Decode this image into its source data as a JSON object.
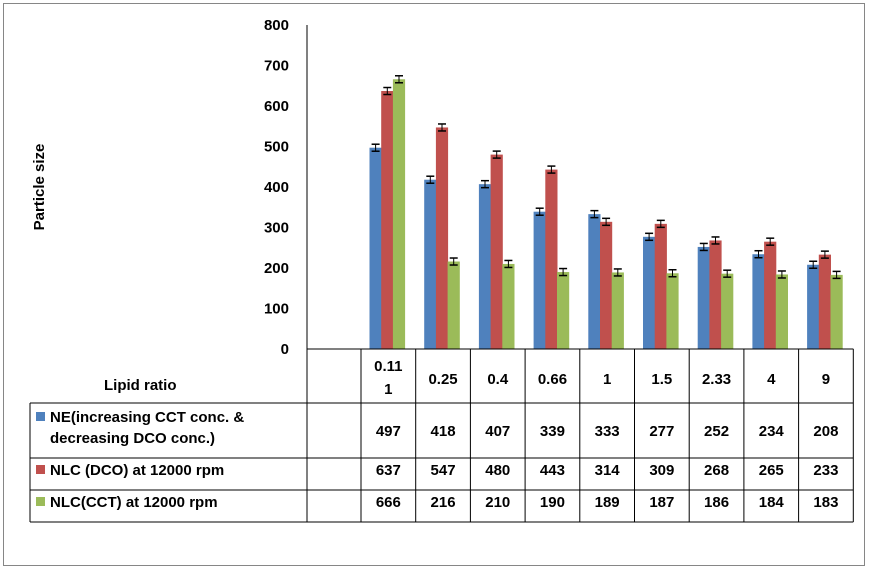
{
  "chart_data": {
    "type": "bar",
    "ylabel": "Particle size",
    "xlabel": "Lipid ratio",
    "ylim": [
      0,
      800
    ],
    "yticks": [
      0,
      100,
      200,
      300,
      400,
      500,
      600,
      700,
      800
    ],
    "categories": [
      "0.11 1",
      "0.25",
      "0.4",
      "0.66",
      "1",
      "1.5",
      "2.33",
      "4",
      "9"
    ],
    "category_lines": [
      [
        "0.11",
        "1"
      ],
      [
        "0.25"
      ],
      [
        "0.4"
      ],
      [
        "0.66"
      ],
      [
        "1"
      ],
      [
        "1.5"
      ],
      [
        "2.33"
      ],
      [
        "4"
      ],
      [
        "9"
      ]
    ],
    "series": [
      {
        "name": "NE(increasing CCT conc. & decreasing DCO conc.)",
        "name_lines": [
          "NE(increasing CCT conc. &",
          "decreasing DCO conc.)"
        ],
        "color": "#4f81bd",
        "values": [
          497,
          418,
          407,
          339,
          333,
          277,
          252,
          234,
          208
        ]
      },
      {
        "name": "NLC (DCO) at 12000 rpm",
        "name_lines": [
          "NLC (DCO) at 12000 rpm"
        ],
        "color": "#c0504d",
        "values": [
          637,
          547,
          480,
          443,
          314,
          309,
          268,
          265,
          233
        ]
      },
      {
        "name": "NLC(CCT) at 12000 rpm",
        "name_lines": [
          "NLC(CCT) at 12000 rpm"
        ],
        "color": "#9bbb59",
        "values": [
          666,
          216,
          210,
          190,
          189,
          187,
          186,
          184,
          183
        ]
      }
    ],
    "error_bars": true,
    "grid": false,
    "legend": "data table"
  }
}
